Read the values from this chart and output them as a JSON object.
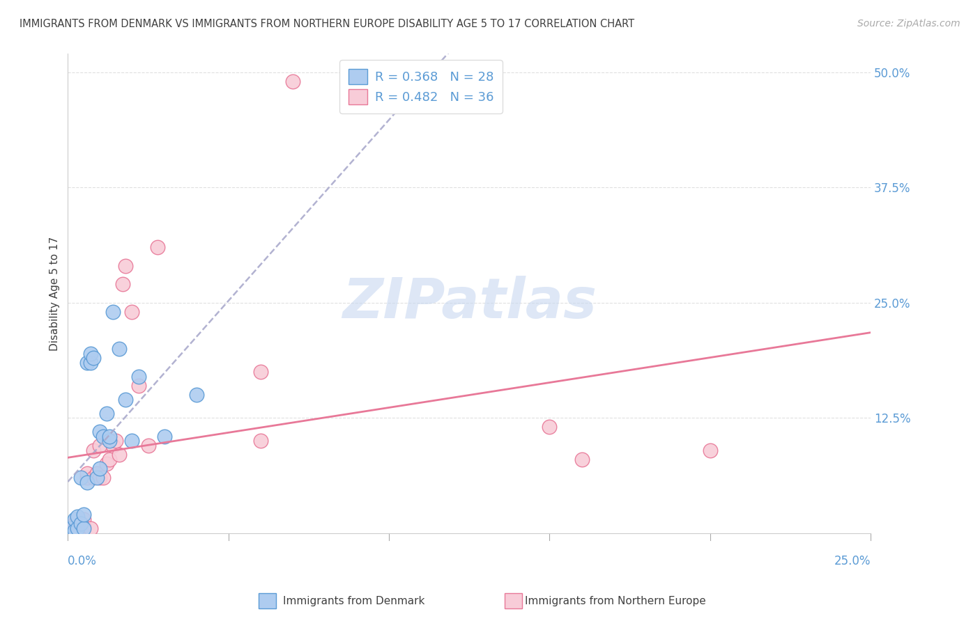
{
  "title": "IMMIGRANTS FROM DENMARK VS IMMIGRANTS FROM NORTHERN EUROPE DISABILITY AGE 5 TO 17 CORRELATION CHART",
  "source": "Source: ZipAtlas.com",
  "ylabel": "Disability Age 5 to 17",
  "ytick_values": [
    0.0,
    0.125,
    0.25,
    0.375,
    0.5
  ],
  "ytick_labels": [
    "",
    "12.5%",
    "25.0%",
    "37.5%",
    "50.0%"
  ],
  "xlim": [
    0.0,
    0.25
  ],
  "ylim": [
    0.0,
    0.52
  ],
  "denmark_color": "#aeccf0",
  "denmark_edge_color": "#5b9bd5",
  "northern_europe_color": "#f8ccd8",
  "northern_europe_edge_color": "#e87898",
  "denmark_R": 0.368,
  "denmark_N": 28,
  "northern_europe_R": 0.482,
  "northern_europe_N": 36,
  "denmark_x": [
    0.001,
    0.002,
    0.002,
    0.003,
    0.003,
    0.004,
    0.004,
    0.005,
    0.005,
    0.006,
    0.006,
    0.007,
    0.007,
    0.008,
    0.009,
    0.01,
    0.01,
    0.011,
    0.012,
    0.013,
    0.013,
    0.014,
    0.016,
    0.018,
    0.02,
    0.022,
    0.03,
    0.04
  ],
  "denmark_y": [
    0.005,
    0.003,
    0.015,
    0.005,
    0.018,
    0.01,
    0.06,
    0.005,
    0.02,
    0.055,
    0.185,
    0.185,
    0.195,
    0.19,
    0.06,
    0.07,
    0.11,
    0.105,
    0.13,
    0.1,
    0.105,
    0.24,
    0.2,
    0.145,
    0.1,
    0.17,
    0.105,
    0.15
  ],
  "northern_europe_x": [
    0.001,
    0.001,
    0.002,
    0.002,
    0.003,
    0.003,
    0.004,
    0.004,
    0.005,
    0.005,
    0.006,
    0.006,
    0.007,
    0.008,
    0.008,
    0.009,
    0.01,
    0.01,
    0.011,
    0.012,
    0.013,
    0.014,
    0.015,
    0.016,
    0.017,
    0.018,
    0.02,
    0.022,
    0.025,
    0.028,
    0.06,
    0.06,
    0.07,
    0.15,
    0.16,
    0.2
  ],
  "northern_europe_y": [
    0.004,
    0.008,
    0.005,
    0.01,
    0.005,
    0.015,
    0.005,
    0.008,
    0.008,
    0.015,
    0.06,
    0.065,
    0.005,
    0.06,
    0.09,
    0.065,
    0.06,
    0.095,
    0.06,
    0.075,
    0.08,
    0.095,
    0.1,
    0.085,
    0.27,
    0.29,
    0.24,
    0.16,
    0.095,
    0.31,
    0.1,
    0.175,
    0.49,
    0.115,
    0.08,
    0.09
  ],
  "grid_color": "#e0e0e0",
  "background_color": "#ffffff",
  "title_color": "#404040",
  "axis_label_color": "#5b9bd5",
  "watermark_text": "ZIPatlas",
  "watermark_color": "#c8d8f0",
  "denmark_line_color": "#aaaacc",
  "northern_europe_line_color": "#e87898"
}
